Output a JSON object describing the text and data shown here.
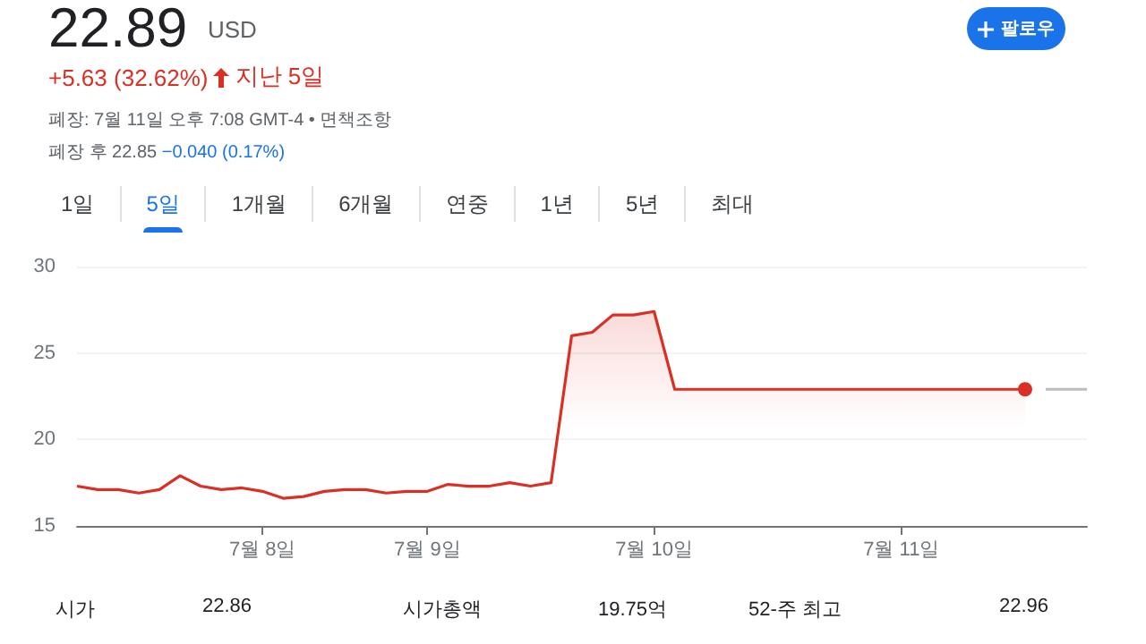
{
  "chart_data": {
    "type": "area",
    "title": "22.89",
    "annotations": [
      "USD",
      "+5.63 (32.62%)",
      "지난 5일",
      "폐장: 7월 11일 오후 7:08 GMT-4 • 면책조항",
      "폐장 후 22.85",
      "−0.040 (0.17%)",
      "팔로우",
      "1일",
      "5일",
      "1개월",
      "6개월",
      "연중",
      "1년",
      "5년",
      "최대",
      "시가",
      "22.86",
      "시가총액",
      "19.75억",
      "52-주 최고",
      "22.96"
    ],
    "categories": [
      null,
      null,
      null,
      null,
      null,
      null,
      null,
      null,
      null,
      "7월 8일",
      null,
      null,
      null,
      null,
      null,
      null,
      null,
      "7월 9일",
      null,
      null,
      null,
      null,
      null,
      null,
      null,
      null,
      null,
      null,
      "7월 10일",
      null,
      null,
      null,
      null,
      null,
      null,
      null,
      null,
      null,
      null,
      null,
      "7월 11일",
      null,
      null,
      null,
      null,
      null,
      null,
      null,
      null,
      null
    ],
    "series": [
      {
        "color": "#d93025",
        "values": [
          17.3,
          17.1,
          17.1,
          16.9,
          17.1,
          17.9,
          17.3,
          17.1,
          17.2,
          17.0,
          16.6,
          16.7,
          17.0,
          17.1,
          17.1,
          16.9,
          17.0,
          17.0,
          17.4,
          17.3,
          17.3,
          17.5,
          17.3,
          17.5,
          26.0,
          26.2,
          27.2,
          27.2,
          27.4,
          22.9,
          22.9,
          22.9,
          22.9,
          22.9,
          22.9,
          22.9,
          22.9,
          22.9,
          22.9,
          22.9,
          22.9,
          22.9,
          22.9,
          22.9,
          22.9,
          22.9,
          22.9,
          null,
          null,
          null
        ]
      },
      {
        "type": "line",
        "color": "#bdbdbd",
        "values": [
          null,
          null,
          null,
          null,
          null,
          null,
          null,
          null,
          null,
          null,
          null,
          null,
          null,
          null,
          null,
          null,
          null,
          null,
          null,
          null,
          null,
          null,
          null,
          null,
          null,
          null,
          null,
          null,
          null,
          null,
          null,
          null,
          null,
          null,
          null,
          null,
          null,
          null,
          null,
          null,
          null,
          null,
          null,
          null,
          null,
          null,
          null,
          22.9,
          22.9,
          22.9
        ]
      }
    ],
    "ylim": [
      15,
      30
    ],
    "yticks": [
      15,
      20,
      25,
      30
    ],
    "grid": "y"
  }
}
